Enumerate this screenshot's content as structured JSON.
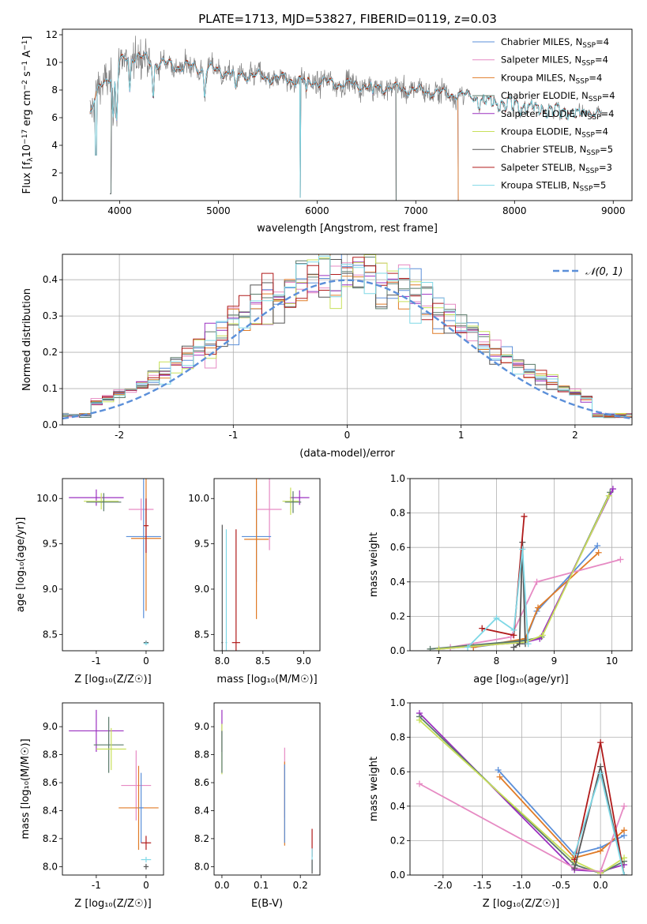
{
  "figure_title": "PLATE=1713, MJD=53827, FIBERID=0119, z=0.03",
  "colors": {
    "Chabrier MILES": "#5b8fd9",
    "Salpeter MILES": "#e68ac3",
    "Kroupa MILES": "#e07b27",
    "Chabrier ELODIE": "#5a7a6a",
    "Salpeter ELODIE": "#9b30c0",
    "Kroupa ELODIE": "#c8e05a",
    "Chabrier STELIB": "#555555",
    "Salpeter STELIB": "#b01a1a",
    "Kroupa STELIB": "#7fd8e6",
    "data": "#808080",
    "normal": "#5b8fd9"
  },
  "chart_data": [
    {
      "id": "spectrum",
      "type": "line",
      "title": "PLATE=1713, MJD=53827, FIBERID=0119, z=0.03",
      "xlabel": "wavelength [Angstrom, rest frame]",
      "ylabel": "Flux [fλ10⁻¹⁷ erg cm⁻² s⁻¹ A⁻¹]",
      "xlim": [
        3420,
        9190
      ],
      "ylim": [
        0,
        12.4
      ],
      "xticks": [
        4000,
        5000,
        6000,
        7000,
        8000,
        9000
      ],
      "yticks": [
        0,
        2,
        4,
        6,
        8,
        10,
        12
      ],
      "legend": [
        "Chabrier MILES, N_SSP=4",
        "Salpeter MILES, N_SSP=4",
        "Kroupa MILES, N_SSP=4",
        "Chabrier ELODIE, N_SSP=4",
        "Salpeter ELODIE, N_SSP=4",
        "Kroupa ELODIE, N_SSP=4",
        "Chabrier STELIB, N_SSP=5",
        "Salpeter STELIB, N_SSP=3",
        "Kroupa STELIB, N_SSP=5"
      ],
      "continuum_knots": {
        "x": [
          3700,
          3800,
          3950,
          4100,
          4300,
          4500,
          4800,
          5100,
          5500,
          6000,
          6500,
          7000,
          7500,
          8000,
          8500,
          8900
        ],
        "y": [
          6.3,
          8.2,
          9.5,
          10.6,
          10.1,
          9.8,
          9.6,
          9.3,
          8.9,
          8.6,
          8.3,
          8.0,
          7.6,
          7.1,
          6.6,
          6.3
        ]
      },
      "ranges": {
        "MILES": [
          3700,
          7430
        ],
        "ELODIE": [
          3900,
          6800
        ],
        "STELIB": [
          3700,
          8880
        ],
        "data": [
          3700,
          8880
        ]
      }
    },
    {
      "id": "histogram",
      "type": "bar",
      "xlabel": "(data-model)/error",
      "ylabel": "Normed distribution",
      "xlim": [
        -2.5,
        2.5
      ],
      "ylim": [
        0,
        0.47
      ],
      "xticks": [
        -2,
        -1,
        0,
        1,
        2
      ],
      "yticks": [
        0.0,
        0.1,
        0.2,
        0.3,
        0.4
      ],
      "legend": [
        "𝒩(0, 1)"
      ],
      "bin_width": 0.1
    },
    {
      "id": "age_vs_Z",
      "type": "scatter",
      "xlabel": "Z [log₁₀(Z/Z☉)]",
      "ylabel": "age  [log₁₀(age/yr)]",
      "xlim": [
        -1.68,
        0.35
      ],
      "ylim": [
        8.32,
        10.22
      ],
      "xticks": [
        -1,
        0
      ],
      "yticks": [
        8.5,
        9.0,
        9.5,
        10.0
      ],
      "points": [
        {
          "m": "Salpeter ELODIE",
          "x": -1.0,
          "xe": 0.55,
          "y": 10.01,
          "ye": 0.09
        },
        {
          "m": "Kroupa ELODIE",
          "x": -0.9,
          "xe": 0.35,
          "y": 9.97,
          "ye": 0.09
        },
        {
          "m": "Chabrier ELODIE",
          "x": -0.85,
          "xe": 0.35,
          "y": 9.96,
          "ye": 0.1
        },
        {
          "m": "Salpeter MILES",
          "x": -0.1,
          "xe": 0.25,
          "y": 9.88,
          "ye": 0.12
        },
        {
          "m": "Chabrier MILES",
          "x": -0.05,
          "xe": 0.35,
          "y": 9.58,
          "ye": 0.9
        },
        {
          "m": "Kroupa MILES",
          "x": 0.0,
          "xe": 0.3,
          "y": 9.56,
          "ye": 0.8
        },
        {
          "m": "Salpeter STELIB",
          "x": 0.0,
          "xe": 0.05,
          "y": 9.7,
          "ye": 0.3
        },
        {
          "m": "Chabrier STELIB",
          "x": 0.0,
          "xe": 0.05,
          "y": 8.41,
          "ye": 0.02
        },
        {
          "m": "Kroupa STELIB",
          "x": 0.0,
          "xe": 0.05,
          "y": 8.4,
          "ye": 0.02
        }
      ]
    },
    {
      "id": "age_vs_mass",
      "type": "scatter",
      "xlabel": "mass [log₁₀(M/M☉)]",
      "ylabel": "",
      "xlim": [
        7.9,
        9.2
      ],
      "ylim": [
        8.32,
        10.22
      ],
      "xticks": [
        8.0,
        8.5,
        9.0
      ],
      "yticks": [
        8.5,
        9.0,
        9.5,
        10.0
      ],
      "points": [
        {
          "m": "Salpeter ELODIE",
          "x": 8.95,
          "xe": 0.12,
          "y": 10.01,
          "ye": 0.08
        },
        {
          "m": "Kroupa ELODIE",
          "x": 8.84,
          "xe": 0.1,
          "y": 9.97,
          "ye": 0.15
        },
        {
          "m": "Chabrier ELODIE",
          "x": 8.87,
          "xe": 0.1,
          "y": 9.96,
          "ye": 0.12
        },
        {
          "m": "Salpeter MILES",
          "x": 8.58,
          "xe": 0.15,
          "y": 9.88,
          "ye": 0.45
        },
        {
          "m": "Chabrier MILES",
          "x": 8.42,
          "xe": 0.18,
          "y": 9.58,
          "ye": 0.5
        },
        {
          "m": "Kroupa MILES",
          "x": 8.42,
          "xe": 0.15,
          "y": 9.55,
          "ye": 0.88
        },
        {
          "m": "Salpeter STELIB",
          "x": 8.17,
          "xe": 0.05,
          "y": 8.41,
          "ye": 1.25
        },
        {
          "m": "Chabrier STELIB",
          "x": 8.0,
          "xe": 0.01,
          "y": 8.41,
          "ye": 1.3
        },
        {
          "m": "Kroupa STELIB",
          "x": 8.05,
          "xe": 0.01,
          "y": 8.41,
          "ye": 1.25
        }
      ]
    },
    {
      "id": "weight_vs_age",
      "type": "line",
      "xlabel": "age  [log₁₀(age/yr)]",
      "ylabel": "mass weight",
      "xlim": [
        6.5,
        10.35
      ],
      "ylim": [
        0,
        1.0
      ],
      "xticks": [
        7,
        8,
        9,
        10
      ],
      "yticks": [
        0.0,
        0.2,
        0.4,
        0.6,
        0.8,
        1.0
      ],
      "series": [
        {
          "name": "Chabrier MILES",
          "x": [
            7.6,
            8.5,
            8.7,
            9.75
          ],
          "y": [
            0.02,
            0.06,
            0.23,
            0.61
          ]
        },
        {
          "name": "Kroupa MILES",
          "x": [
            7.6,
            8.5,
            8.72,
            9.77
          ],
          "y": [
            0.02,
            0.07,
            0.25,
            0.57
          ]
        },
        {
          "name": "Salpeter MILES",
          "x": [
            7.2,
            8.25,
            8.7,
            10.15
          ],
          "y": [
            0.02,
            0.08,
            0.4,
            0.53
          ]
        },
        {
          "name": "Chabrier ELODIE",
          "x": [
            6.85,
            8.5,
            8.78,
            9.97
          ],
          "y": [
            0.01,
            0.06,
            0.08,
            0.92
          ]
        },
        {
          "name": "Salpeter ELODIE",
          "x": [
            7.0,
            8.5,
            8.75,
            10.02
          ],
          "y": [
            0.01,
            0.05,
            0.07,
            0.94
          ]
        },
        {
          "name": "Kroupa ELODIE",
          "x": [
            7.0,
            8.5,
            8.8,
            9.95
          ],
          "y": [
            0.01,
            0.05,
            0.09,
            0.9
          ]
        },
        {
          "name": "Chabrier STELIB",
          "x": [
            8.3,
            8.4,
            8.45,
            8.5
          ],
          "y": [
            0.02,
            0.04,
            0.63,
            0.04
          ]
        },
        {
          "name": "Salpeter STELIB",
          "x": [
            7.75,
            8.3,
            8.48
          ],
          "y": [
            0.13,
            0.09,
            0.78
          ]
        },
        {
          "name": "Kroupa STELIB",
          "x": [
            7.5,
            8.0,
            8.3,
            8.45,
            8.55
          ],
          "y": [
            0.02,
            0.19,
            0.12,
            0.59,
            0.04
          ]
        }
      ]
    },
    {
      "id": "mass_vs_Z",
      "type": "scatter",
      "xlabel": "Z [log₁₀(Z/Z☉)]",
      "ylabel": "mass [log₁₀(M/M☉)]",
      "xlim": [
        -1.68,
        0.35
      ],
      "ylim": [
        7.94,
        9.17
      ],
      "xticks": [
        -1,
        0
      ],
      "yticks": [
        8.0,
        8.2,
        8.4,
        8.6,
        8.8,
        9.0
      ],
      "points": [
        {
          "m": "Salpeter ELODIE",
          "x": -1.0,
          "xe": 0.55,
          "y": 8.97,
          "ye": 0.15
        },
        {
          "m": "Chabrier ELODIE",
          "x": -0.75,
          "xe": 0.3,
          "y": 8.87,
          "ye": 0.2
        },
        {
          "m": "Kroupa ELODIE",
          "x": -0.7,
          "xe": 0.3,
          "y": 8.84,
          "ye": 0.15
        },
        {
          "m": "Salpeter MILES",
          "x": -0.2,
          "xe": 0.3,
          "y": 8.58,
          "ye": 0.25
        },
        {
          "m": "Kroupa MILES",
          "x": -0.15,
          "xe": 0.4,
          "y": 8.42,
          "ye": 0.3
        },
        {
          "m": "Chabrier MILES",
          "x": -0.1,
          "xe": 0.05,
          "y": 8.42,
          "ye": 0.25
        },
        {
          "m": "Salpeter STELIB",
          "x": 0.0,
          "xe": 0.1,
          "y": 8.17,
          "ye": 0.05
        },
        {
          "m": "Kroupa STELIB",
          "x": 0.0,
          "xe": 0.1,
          "y": 8.05,
          "ye": 0.02
        },
        {
          "m": "Chabrier STELIB",
          "x": 0.0,
          "xe": 0.05,
          "y": 8.0,
          "ye": 0.02
        }
      ]
    },
    {
      "id": "mass_vs_ebv",
      "type": "scatter",
      "xlabel": "E(B-V)",
      "ylabel": "",
      "xlim": [
        -0.02,
        0.25
      ],
      "ylim": [
        7.94,
        9.17
      ],
      "xticks": [
        0.0,
        0.1,
        0.2
      ],
      "yticks": [
        8.0,
        8.2,
        8.4,
        8.6,
        8.8,
        9.0
      ],
      "points": [
        {
          "m": "Salpeter ELODIE",
          "x": 0.0,
          "xe": 0,
          "y": 8.97,
          "ye": 0.15
        },
        {
          "m": "Kroupa ELODIE",
          "x": 0.0,
          "xe": 0,
          "y": 8.84,
          "ye": 0.18
        },
        {
          "m": "Chabrier ELODIE",
          "x": 0.0,
          "xe": 0,
          "y": 8.82,
          "ye": 0.15
        },
        {
          "m": "Salpeter MILES",
          "x": 0.16,
          "xe": 0,
          "y": 8.6,
          "ye": 0.25
        },
        {
          "m": "Kroupa MILES",
          "x": 0.16,
          "xe": 0,
          "y": 8.45,
          "ye": 0.3
        },
        {
          "m": "Chabrier MILES",
          "x": 0.16,
          "xe": 0,
          "y": 8.45,
          "ye": 0.28
        },
        {
          "m": "Salpeter STELIB",
          "x": 0.23,
          "xe": 0,
          "y": 8.17,
          "ye": 0.1
        },
        {
          "m": "Kroupa STELIB",
          "x": 0.23,
          "xe": 0,
          "y": 8.05,
          "ye": 0.08
        },
        {
          "m": "Chabrier STELIB",
          "x": 0.23,
          "xe": 0,
          "y": 8.0,
          "ye": 0.05
        }
      ]
    },
    {
      "id": "weight_vs_Z",
      "type": "line",
      "xlabel": "Z [log₁₀(Z/Z☉)]",
      "ylabel": "mass weight",
      "xlim": [
        -2.42,
        0.4
      ],
      "ylim": [
        0,
        1.0
      ],
      "xticks": [
        -2.0,
        -1.5,
        -1.0,
        -0.5,
        0.0
      ],
      "yticks": [
        0.0,
        0.2,
        0.4,
        0.6,
        0.8,
        1.0
      ],
      "series": [
        {
          "name": "Salpeter ELODIE",
          "x": [
            -2.3,
            -0.33,
            0.0,
            0.3
          ],
          "y": [
            0.94,
            0.03,
            0.02,
            0.06
          ]
        },
        {
          "name": "Chabrier ELODIE",
          "x": [
            -2.3,
            -0.33,
            0.0,
            0.3
          ],
          "y": [
            0.92,
            0.06,
            0.01,
            0.08
          ]
        },
        {
          "name": "Kroupa ELODIE",
          "x": [
            -2.3,
            -0.33,
            0.0,
            0.3
          ],
          "y": [
            0.9,
            0.08,
            0.01,
            0.1
          ]
        },
        {
          "name": "Chabrier MILES",
          "x": [
            -1.3,
            -0.33,
            0.0,
            0.3
          ],
          "y": [
            0.61,
            0.12,
            0.16,
            0.23
          ]
        },
        {
          "name": "Kroupa MILES",
          "x": [
            -1.28,
            -0.33,
            0.0,
            0.3
          ],
          "y": [
            0.57,
            0.1,
            0.14,
            0.26
          ]
        },
        {
          "name": "Salpeter MILES",
          "x": [
            -2.3,
            -0.33,
            0.0,
            0.3
          ],
          "y": [
            0.53,
            0.04,
            0.02,
            0.4
          ]
        },
        {
          "name": "Salpeter STELIB",
          "x": [
            -0.33,
            0.0,
            0.3
          ],
          "y": [
            0.09,
            0.77,
            0.0
          ]
        },
        {
          "name": "Chabrier STELIB",
          "x": [
            -0.33,
            0.0,
            0.3
          ],
          "y": [
            0.04,
            0.63,
            0.0
          ]
        },
        {
          "name": "Kroupa STELIB",
          "x": [
            -0.33,
            0.0,
            0.3
          ],
          "y": [
            0.12,
            0.59,
            0.0
          ]
        }
      ]
    }
  ]
}
